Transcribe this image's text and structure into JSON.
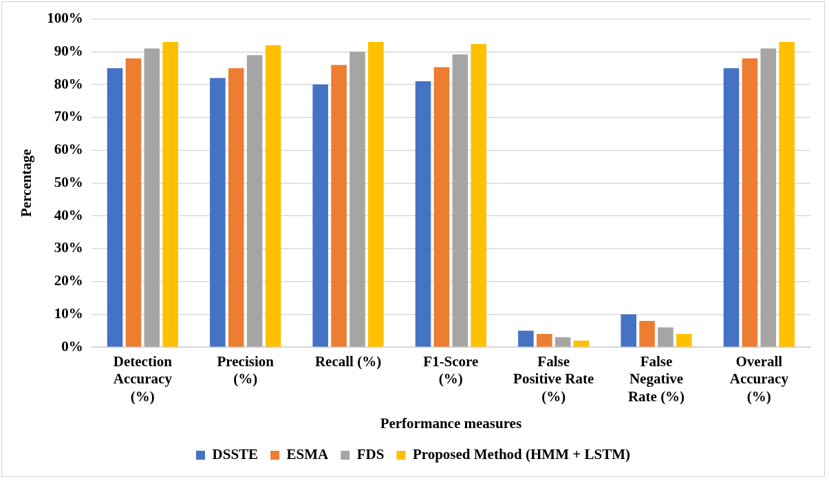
{
  "chart_data": {
    "type": "bar",
    "xlabel": "Performance measures",
    "ylabel": "Percentage",
    "categories": [
      "Detection Accuracy (%)",
      "Precision (%)",
      "Recall (%)",
      "F1-Score (%)",
      "False Positive Rate (%)",
      "False Negative Rate (%)",
      "Overall Accuracy (%)"
    ],
    "series": [
      {
        "name": "DSSTE",
        "color": "#4472c4",
        "values": [
          85,
          82,
          80,
          81,
          5,
          10,
          85
        ]
      },
      {
        "name": "ESMA",
        "color": "#ed7d31",
        "values": [
          88,
          85,
          86,
          85.3,
          4,
          8,
          88
        ]
      },
      {
        "name": "FDS",
        "color": "#a5a5a5",
        "values": [
          91,
          89,
          90,
          89.2,
          3,
          6,
          91
        ]
      },
      {
        "name": "Proposed Method (HMM + LSTM)",
        "color": "#ffc000",
        "values": [
          93,
          92,
          93,
          92.4,
          2,
          4,
          93
        ]
      }
    ],
    "ylim": [
      0,
      100
    ],
    "yticks": [
      {
        "value": 0,
        "label": "0%"
      },
      {
        "value": 10,
        "label": "10%"
      },
      {
        "value": 20,
        "label": "20%"
      },
      {
        "value": 30,
        "label": "30%"
      },
      {
        "value": 40,
        "label": "40%"
      },
      {
        "value": 50,
        "label": "50%"
      },
      {
        "value": 60,
        "label": "60%"
      },
      {
        "value": 70,
        "label": "70%"
      },
      {
        "value": 80,
        "label": "80%"
      },
      {
        "value": 90,
        "label": "90%"
      },
      {
        "value": 100,
        "label": "100%"
      }
    ],
    "grid": "y",
    "legend": "bottom"
  }
}
